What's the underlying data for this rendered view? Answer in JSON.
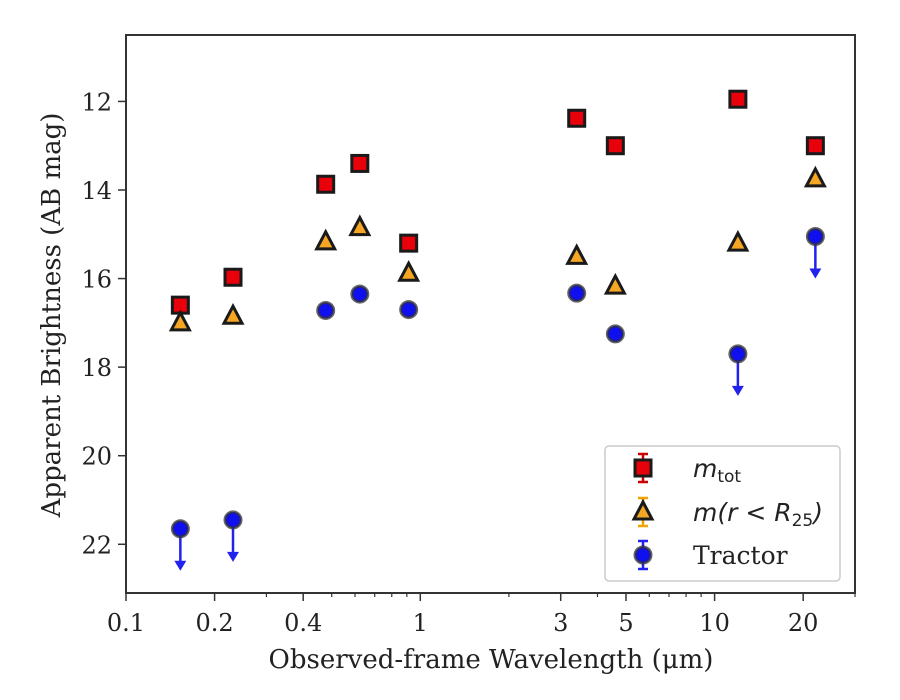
{
  "chart_data": {
    "type": "scatter",
    "xlabel": "Observed-frame Wavelength (μm)",
    "ylabel": "Apparent Brightness (AB mag)",
    "xscale": "log",
    "xlim": [
      0.1,
      30
    ],
    "ylim": [
      23.1,
      10.5
    ],
    "y_inverted": true,
    "xticks": [
      {
        "value": 0.1,
        "label": "0.1"
      },
      {
        "value": 0.2,
        "label": "0.2"
      },
      {
        "value": 0.4,
        "label": "0.4"
      },
      {
        "value": 1,
        "label": "1"
      },
      {
        "value": 3,
        "label": "3"
      },
      {
        "value": 5,
        "label": "5"
      },
      {
        "value": 10,
        "label": "10"
      },
      {
        "value": 20,
        "label": "20"
      }
    ],
    "yticks": [
      {
        "value": 12,
        "label": "12"
      },
      {
        "value": 14,
        "label": "14"
      },
      {
        "value": 16,
        "label": "16"
      },
      {
        "value": 18,
        "label": "18"
      },
      {
        "value": 20,
        "label": "20"
      },
      {
        "value": 22,
        "label": "22"
      }
    ],
    "grid": false,
    "legend_position": "bottom-right",
    "series": [
      {
        "name": "m_tot",
        "marker": "square",
        "color": "#e8000b",
        "edge": "#1a1a1a",
        "errcolor": "#cc0000",
        "points": [
          {
            "x": 0.153,
            "y": 16.6
          },
          {
            "x": 0.231,
            "y": 15.97
          },
          {
            "x": 0.477,
            "y": 13.87
          },
          {
            "x": 0.623,
            "y": 13.4
          },
          {
            "x": 0.913,
            "y": 15.2
          },
          {
            "x": 3.4,
            "y": 12.38
          },
          {
            "x": 4.6,
            "y": 13.0
          },
          {
            "x": 12.0,
            "y": 11.95
          },
          {
            "x": 22.0,
            "y": 13.0
          }
        ]
      },
      {
        "name": "m(r < R25)",
        "marker": "triangle",
        "color": "#f5a623",
        "edge": "#1a1a1a",
        "errcolor": "#f0a500",
        "points": [
          {
            "x": 0.153,
            "y": 17.0
          },
          {
            "x": 0.231,
            "y": 16.85
          },
          {
            "x": 0.477,
            "y": 15.17
          },
          {
            "x": 0.623,
            "y": 14.85
          },
          {
            "x": 0.913,
            "y": 15.88
          },
          {
            "x": 3.4,
            "y": 15.5
          },
          {
            "x": 4.6,
            "y": 16.17
          },
          {
            "x": 12.0,
            "y": 15.2
          },
          {
            "x": 22.0,
            "y": 13.75
          }
        ]
      },
      {
        "name": "Tractor",
        "marker": "circle",
        "color": "#1010ee",
        "edge": "#333333",
        "errcolor": "#2222ee",
        "points": [
          {
            "x": 0.153,
            "y": 21.65,
            "upper_limit": true
          },
          {
            "x": 0.231,
            "y": 21.45,
            "upper_limit": true
          },
          {
            "x": 0.477,
            "y": 16.72
          },
          {
            "x": 0.623,
            "y": 16.35
          },
          {
            "x": 0.913,
            "y": 16.7
          },
          {
            "x": 3.4,
            "y": 16.33
          },
          {
            "x": 4.6,
            "y": 17.25
          },
          {
            "x": 12.0,
            "y": 17.7,
            "upper_limit": true
          },
          {
            "x": 22.0,
            "y": 15.05,
            "upper_limit": true
          }
        ]
      }
    ],
    "legend": {
      "entries": [
        {
          "base": "m",
          "sub": "tot",
          "series": "m_tot"
        },
        {
          "base": "m(r < R",
          "sub": "25",
          "tail": ")",
          "series": "m(r < R25)"
        },
        {
          "text": "Tractor",
          "series": "Tractor"
        }
      ]
    }
  }
}
